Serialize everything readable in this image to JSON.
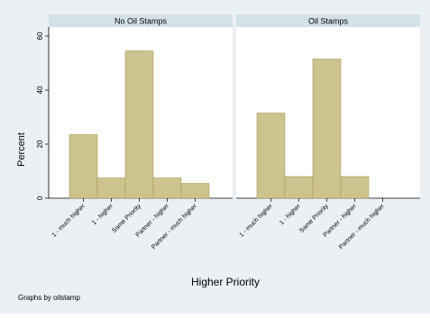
{
  "chart_data": {
    "type": "bar",
    "categories": [
      "1 - much higher",
      "1 - higher",
      "Same Priority",
      "Partner - higher",
      "Partner - much higher"
    ],
    "panels": [
      {
        "title": "No Oil Stamps",
        "values": [
          23.5,
          7.5,
          54.5,
          7.5,
          5.5
        ]
      },
      {
        "title": "Oil Stamps",
        "values": [
          31.5,
          8,
          51.5,
          8,
          0
        ]
      }
    ],
    "ylabel": "Percent",
    "xlabel": "Higher Priority",
    "ylim": [
      0,
      60
    ],
    "yticks": [
      0,
      20,
      40,
      60
    ],
    "note": "Graphs by oilstamp",
    "colors": {
      "bar": "#cdc38e",
      "bar_stroke": "#a89c60",
      "panel_header": "#d3e1e8",
      "plot_bg": "#ffffff",
      "outer_bg": "#eaf0f3"
    }
  }
}
